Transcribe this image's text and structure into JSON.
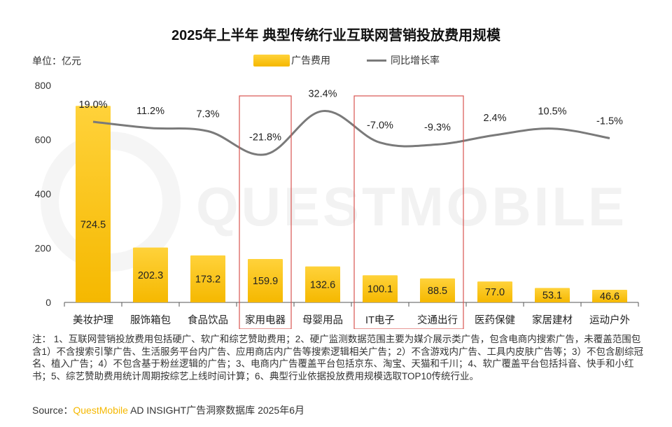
{
  "title": "2025年上半年 典型传统行业互联网营销投放费用规模",
  "unit_label": "单位：亿元",
  "watermark": "QUESTMOBILE",
  "legend": {
    "bar_label": "广告费用",
    "line_label": "同比增长率"
  },
  "colors": {
    "bar_top": "#ffd23a",
    "bar_bottom": "#f5b800",
    "line": "#7a7a7a",
    "highlight_box": "#d9534f"
  },
  "chart_data": {
    "type": "bar",
    "categories": [
      "美妆护理",
      "服饰箱包",
      "食品饮品",
      "家用电器",
      "母婴用品",
      "IT电子",
      "交通出行",
      "医药保健",
      "家居建材",
      "运动户外"
    ],
    "series": [
      {
        "name": "广告费用",
        "type": "bar",
        "values": [
          724.5,
          202.3,
          173.2,
          159.9,
          132.6,
          100.1,
          88.5,
          77.0,
          53.1,
          46.6
        ],
        "labels": [
          "724.5",
          "202.3",
          "173.2",
          "159.9",
          "132.6",
          "100.1",
          "88.5",
          "77.0",
          "53.1",
          "46.6"
        ]
      },
      {
        "name": "同比增长率",
        "type": "line",
        "values": [
          19.0,
          11.2,
          7.3,
          -21.8,
          32.4,
          -7.0,
          -9.3,
          2.4,
          10.5,
          -1.5
        ],
        "labels": [
          "19.0%",
          "11.2%",
          "7.3%",
          "-21.8%",
          "32.4%",
          "-7.0%",
          "-9.3%",
          "2.4%",
          "10.5%",
          "-1.5%"
        ]
      }
    ],
    "y_ticks": [
      "0",
      "200",
      "400",
      "600",
      "800"
    ],
    "ylim": [
      0,
      800
    ],
    "highlighted_categories": [
      "家用电器",
      "IT电子",
      "交通出行"
    ]
  },
  "notes": "注： 1、互联网营销投放费用包括硬广、软广和综艺赞助费用；2、硬广监测数据范围主要为媒介展示类广告，包含电商内搜索广告，未覆盖范围包含1）不含搜索引擎广告、生活服务平台内广告、应用商店内广告等搜索逻辑相关广告；2）不含游戏内广告、工具内皮肤广告等；3）不包含剧综冠名、植入广告；4）不包含基于粉丝逻辑的广告；3、电商内广告覆盖平台包括京东、淘宝、天猫和千川；4、软广覆盖平台包括抖音、快手和小红书；5、综艺赞助费用统计周期按综艺上线时间计算；6、典型行业依据投放费用规模选取TOP10传统行业。",
  "source": {
    "prefix": "Source：",
    "brand": "QuestMobile",
    "rest": " AD INSIGHT广告洞察数据库 2025年6月"
  }
}
